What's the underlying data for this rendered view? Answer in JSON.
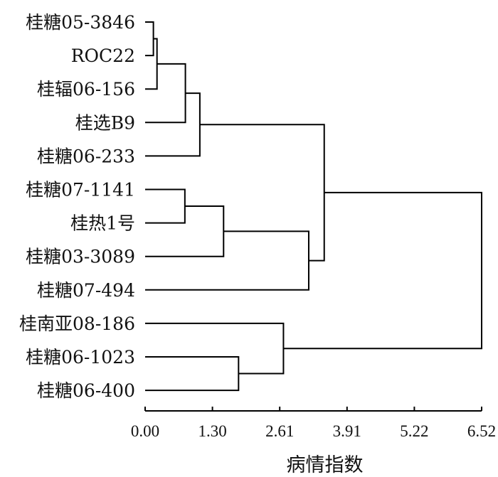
{
  "chart_data": {
    "type": "dendrogram",
    "orientation": "horizontal",
    "xlabel": "病情指数",
    "xlim": [
      0,
      6.52
    ],
    "xticks": [
      "0.00",
      "1.30",
      "2.61",
      "3.91",
      "5.22",
      "6.52"
    ],
    "leaves": [
      "桂糖05-3846",
      "ROC22",
      "桂辐06-156",
      "桂选B9",
      "桂糖06-233",
      "桂糖07-1141",
      "桂热1号",
      "桂糖03-3089",
      "桂糖07-494",
      "桂南亚08-186",
      "桂糖06-1023",
      "桂糖06-400"
    ],
    "merges": [
      {
        "id": "c1",
        "left": "桂糖05-3846",
        "right": "ROC22",
        "height": 0.16
      },
      {
        "id": "c2",
        "left": "c1",
        "right": "桂辐06-156",
        "height": 0.23
      },
      {
        "id": "c3",
        "left": "c2",
        "right": "桂选B9",
        "height": 0.78
      },
      {
        "id": "c4",
        "left": "c3",
        "right": "桂糖06-233",
        "height": 1.06
      },
      {
        "id": "c5",
        "left": "桂糖07-1141",
        "right": "桂热1号",
        "height": 0.77
      },
      {
        "id": "c6",
        "left": "c5",
        "right": "桂糖03-3089",
        "height": 1.52
      },
      {
        "id": "c7",
        "left": "c6",
        "right": "桂糖07-494",
        "height": 3.17
      },
      {
        "id": "c8",
        "left": "c4",
        "right": "c7",
        "height": 3.47
      },
      {
        "id": "c9",
        "left": "桂糖06-1023",
        "right": "桂糖06-400",
        "height": 1.81
      },
      {
        "id": "c10",
        "left": "桂南亚08-186",
        "right": "c9",
        "height": 2.68
      },
      {
        "id": "c11",
        "left": "c8",
        "right": "c10",
        "height": 6.52
      }
    ]
  }
}
